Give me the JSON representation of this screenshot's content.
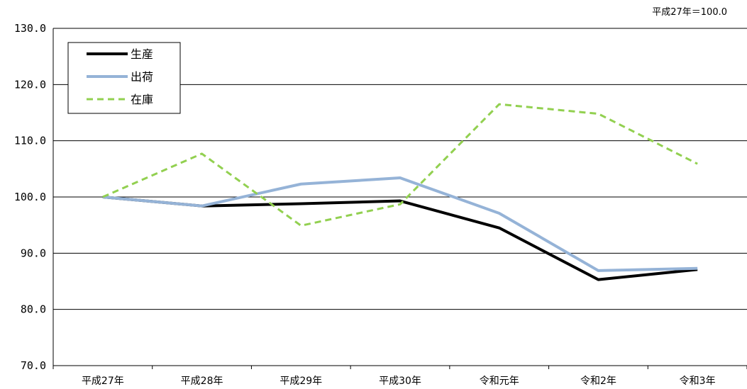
{
  "note": "平成27年＝100.0",
  "chart_data": {
    "type": "line",
    "categories": [
      "平成27年",
      "平成28年",
      "平成29年",
      "平成30年",
      "令和元年",
      "令和2年",
      "令和3年"
    ],
    "ylim": [
      70,
      130
    ],
    "yticks": [
      "70.0",
      "80.0",
      "90.0",
      "100.0",
      "110.0",
      "120.0",
      "130.0"
    ],
    "grid": true,
    "legend_position": "top-left",
    "series": [
      {
        "name": "生産",
        "color": "#000000",
        "dash": "solid",
        "values": [
          100.0,
          98.4,
          98.8,
          99.3,
          94.5,
          85.3,
          87.1
        ]
      },
      {
        "name": "出荷",
        "color": "#95b3d7",
        "dash": "solid",
        "values": [
          100.0,
          98.4,
          102.3,
          103.4,
          97.1,
          86.9,
          87.3
        ]
      },
      {
        "name": "在庫",
        "color": "#92d050",
        "dash": "dashed",
        "values": [
          100.0,
          107.7,
          94.9,
          98.7,
          116.5,
          114.8,
          105.9
        ]
      }
    ]
  }
}
